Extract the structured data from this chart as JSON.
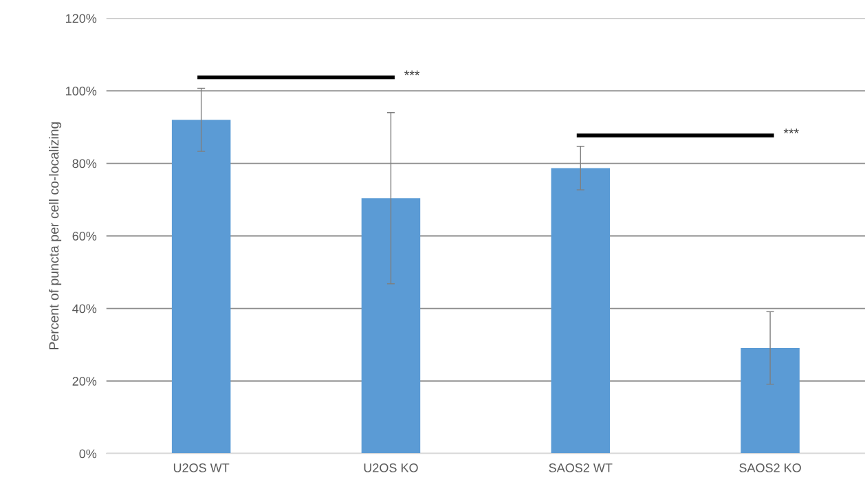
{
  "chart_data": {
    "type": "bar",
    "ylabel": "Percent of puncta per cell co-localizing",
    "categories": [
      "U2OS WT",
      "U2OS KO",
      "SAOS2 WT",
      "SAOS2 KO"
    ],
    "values": [
      92,
      70.4,
      78.7,
      29.1
    ],
    "errors": [
      8.7,
      23.6,
      6,
      10
    ],
    "color": "#5b9bd5",
    "ylim": [
      0,
      120
    ],
    "yticks": [
      {
        "value": 0,
        "label": "0%"
      },
      {
        "value": 20,
        "label": "20%"
      },
      {
        "value": 40,
        "label": "40%"
      },
      {
        "value": 60,
        "label": "60%"
      },
      {
        "value": 80,
        "label": "80%"
      },
      {
        "value": 100,
        "label": "100%"
      },
      {
        "value": 120,
        "label": "120%"
      }
    ],
    "grid": "y",
    "annotations": [
      "***",
      "***"
    ]
  }
}
